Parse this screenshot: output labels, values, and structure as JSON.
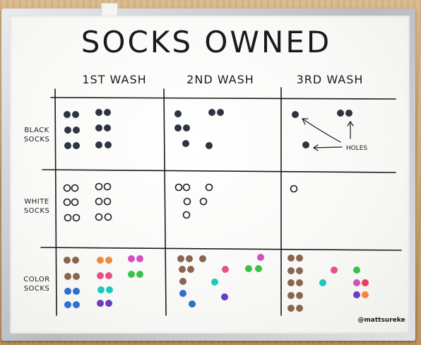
{
  "title": "SOCKS OWNED",
  "columns": [
    "1ST WASH",
    "2ND WASH",
    "3RD WASH"
  ],
  "rows": [
    {
      "line1": "BLACK",
      "line2": "SOCKS"
    },
    {
      "line1": "WHITE",
      "line2": "SOCKS"
    },
    {
      "line1": "COLOR",
      "line2": "SOCKS"
    }
  ],
  "annotation": "HOLES",
  "credit": "@mattsureke",
  "colors": {
    "marker": "#1a1a1a",
    "black_sock": "#2e3440",
    "white_sock_outline": "#1a1a1a",
    "brown": "#8a6550",
    "orange": "#f08a3c",
    "pink": "#e8508a",
    "magenta": "#d050c0",
    "green": "#3cc04a",
    "blue": "#2f6fd0",
    "teal": "#1ec8c0",
    "purple": "#6a3cc0",
    "red": "#e83c5a"
  }
}
